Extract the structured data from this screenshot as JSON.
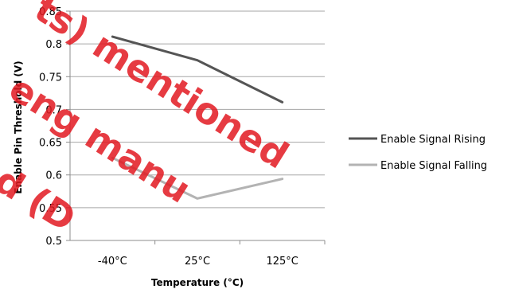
{
  "chart_data": {
    "type": "line",
    "categories": [
      "-40°C",
      "25°C",
      "125°C"
    ],
    "series": [
      {
        "name": "Enable Signal Rising",
        "values": [
          0.811,
          0.775,
          0.711
        ],
        "color": "#555555"
      },
      {
        "name": "Enable Signal Falling",
        "values": [
          0.626,
          0.564,
          0.594
        ],
        "color": "#b3b3b3"
      }
    ],
    "ylim": [
      0.5,
      0.85
    ],
    "yticks": [
      "0.5",
      "0.55",
      "0.6",
      "0.65",
      "0.7",
      "0.75",
      "0.8",
      "0.85"
    ],
    "xlabel": "Temperature (°C)",
    "ylabel": "Enable Pin Threshold (V)",
    "grid": "horizontal",
    "legend": "right"
  },
  "watermark": {
    "lines": [
      "ts) mentioned",
      "eng manu",
      "d (D"
    ],
    "color": "#e21a22"
  }
}
